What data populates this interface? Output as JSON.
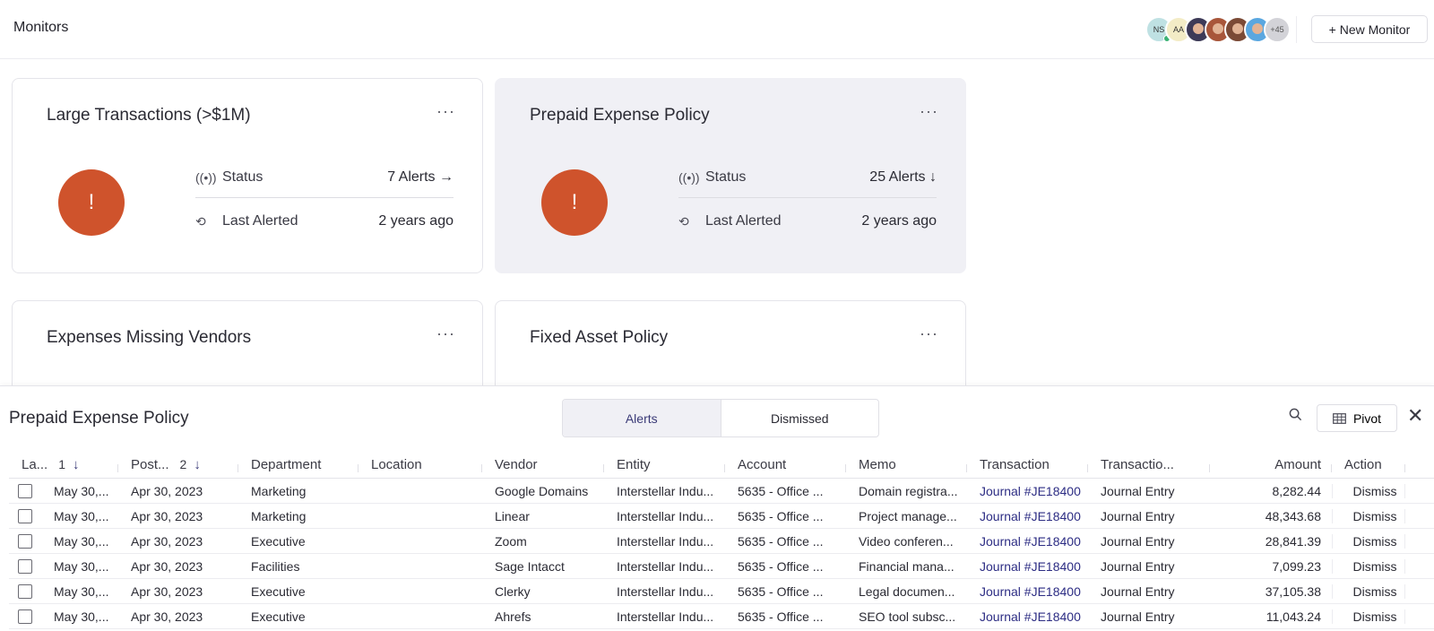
{
  "header": {
    "title": "Monitors",
    "avatars": [
      {
        "initials": "NS",
        "online": true
      },
      {
        "initials": "AA"
      },
      {
        "initials": ""
      },
      {
        "initials": ""
      },
      {
        "initials": ""
      },
      {
        "initials": ""
      }
    ],
    "more_count": "+45",
    "new_monitor_label": "+ New Monitor"
  },
  "cards": [
    {
      "title": "Large Transactions (>$1M)",
      "status_label": "Status",
      "status_value": "7 Alerts →",
      "last_label": "Last Alerted",
      "last_value": "2 years ago"
    },
    {
      "title": "Prepaid Expense Policy",
      "status_label": "Status",
      "status_value": "25 Alerts ↓",
      "last_label": "Last Alerted",
      "last_value": "2 years ago"
    },
    {
      "title": "Expenses Missing Vendors"
    },
    {
      "title": "Fixed Asset Policy"
    }
  ],
  "panel": {
    "title": "Prepaid Expense Policy",
    "tabs": [
      "Alerts",
      "Dismissed"
    ],
    "pivot_label": "Pivot",
    "columns": [
      "La...",
      "Post...",
      "Department",
      "Location",
      "Vendor",
      "Entity",
      "Account",
      "Memo",
      "Transaction",
      "Transactio...",
      "Amount",
      "Action"
    ],
    "sort_1": "1",
    "sort_2": "2",
    "rows": [
      {
        "last": "May 30,...",
        "posted": "Apr 30, 2023",
        "department": "Marketing",
        "location": "",
        "vendor": "Google Domains",
        "entity": "Interstellar Indu...",
        "account": "5635 - Office ...",
        "memo": "Domain registra...",
        "transaction": "Journal #JE18400",
        "type": "Journal Entry",
        "amount": "8,282.44",
        "action": "Dismiss"
      },
      {
        "last": "May 30,...",
        "posted": "Apr 30, 2023",
        "department": "Marketing",
        "location": "",
        "vendor": "Linear",
        "entity": "Interstellar Indu...",
        "account": "5635 - Office ...",
        "memo": "Project manage...",
        "transaction": "Journal #JE18400",
        "type": "Journal Entry",
        "amount": "48,343.68",
        "action": "Dismiss"
      },
      {
        "last": "May 30,...",
        "posted": "Apr 30, 2023",
        "department": "Executive",
        "location": "",
        "vendor": "Zoom",
        "entity": "Interstellar Indu...",
        "account": "5635 - Office ...",
        "memo": "Video conferen...",
        "transaction": "Journal #JE18400",
        "type": "Journal Entry",
        "amount": "28,841.39",
        "action": "Dismiss"
      },
      {
        "last": "May 30,...",
        "posted": "Apr 30, 2023",
        "department": "Facilities",
        "location": "",
        "vendor": "Sage Intacct",
        "entity": "Interstellar Indu...",
        "account": "5635 - Office ...",
        "memo": "Financial mana...",
        "transaction": "Journal #JE18400",
        "type": "Journal Entry",
        "amount": "7,099.23",
        "action": "Dismiss"
      },
      {
        "last": "May 30,...",
        "posted": "Apr 30, 2023",
        "department": "Executive",
        "location": "",
        "vendor": "Clerky",
        "entity": "Interstellar Indu...",
        "account": "5635 - Office ...",
        "memo": "Legal documen...",
        "transaction": "Journal #JE18400",
        "type": "Journal Entry",
        "amount": "37,105.38",
        "action": "Dismiss"
      },
      {
        "last": "May 30,...",
        "posted": "Apr 30, 2023",
        "department": "Executive",
        "location": "",
        "vendor": "Ahrefs",
        "entity": "Interstellar Indu...",
        "account": "5635 - Office ...",
        "memo": "SEO tool subsc...",
        "transaction": "Journal #JE18400",
        "type": "Journal Entry",
        "amount": "11,043.24",
        "action": "Dismiss"
      }
    ]
  }
}
